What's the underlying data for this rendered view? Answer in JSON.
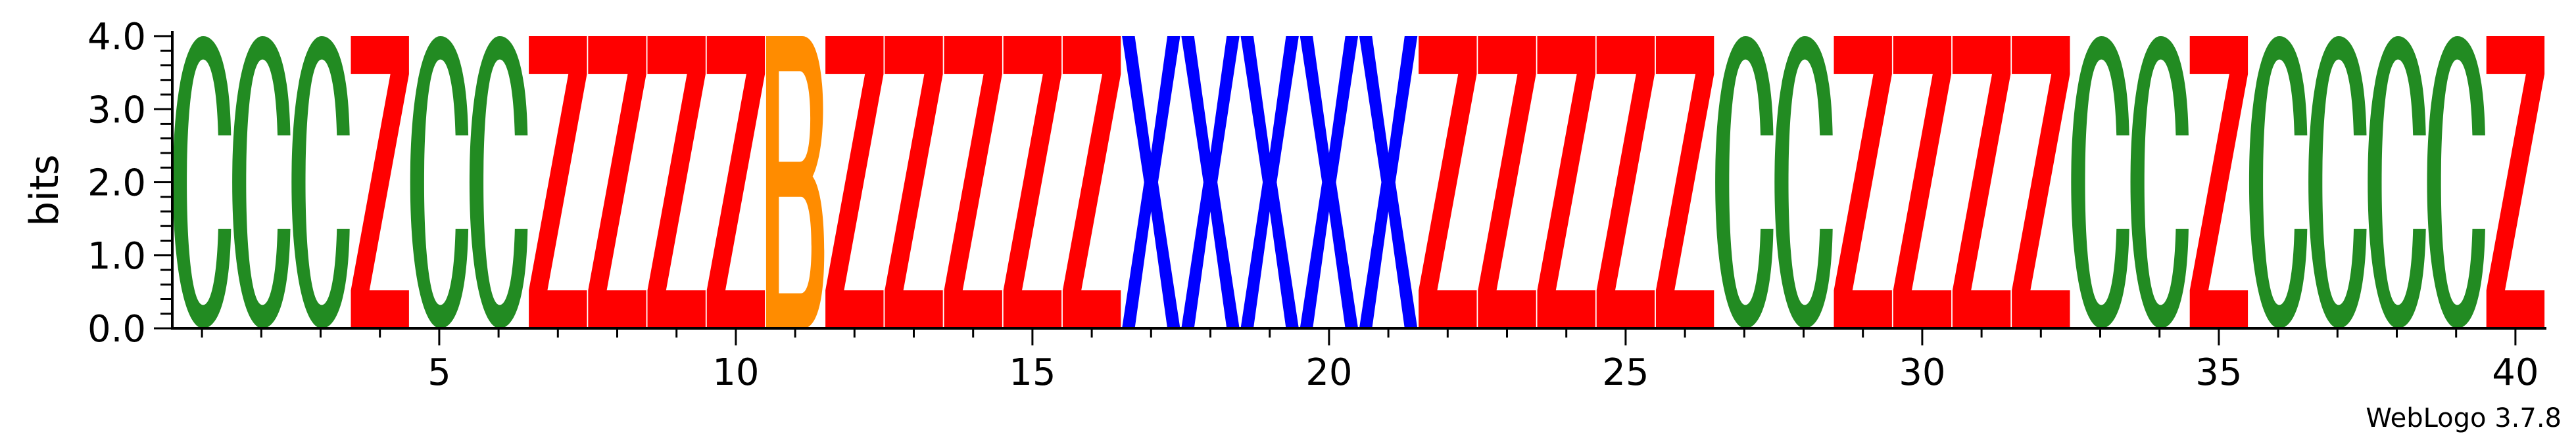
{
  "chart_data": {
    "type": "sequence-logo",
    "xlabel": "",
    "ylabel": "bits",
    "ylim": [
      0,
      4.0
    ],
    "yticks": [
      "0.0",
      "1.0",
      "2.0",
      "3.0",
      "4.0"
    ],
    "xlim": [
      1,
      40
    ],
    "xticks": [
      "5",
      "10",
      "15",
      "20",
      "25",
      "30",
      "35",
      "40"
    ],
    "grid": false,
    "footer": "WebLogo 3.7.8",
    "color_map": {
      "C": "#228B22",
      "Z": "#FF0000",
      "B": "#FF8C00",
      "X": "#0000FF"
    },
    "positions": [
      1,
      2,
      3,
      4,
      5,
      6,
      7,
      8,
      9,
      10,
      11,
      12,
      13,
      14,
      15,
      16,
      17,
      18,
      19,
      20,
      21,
      22,
      23,
      24,
      25,
      26,
      27,
      28,
      29,
      30,
      31,
      32,
      33,
      34,
      35,
      36,
      37,
      38,
      39,
      40
    ],
    "letters": [
      "C",
      "C",
      "C",
      "Z",
      "C",
      "C",
      "Z",
      "Z",
      "Z",
      "Z",
      "B",
      "Z",
      "Z",
      "Z",
      "Z",
      "Z",
      "X",
      "X",
      "X",
      "X",
      "X",
      "Z",
      "Z",
      "Z",
      "Z",
      "Z",
      "C",
      "C",
      "Z",
      "Z",
      "Z",
      "Z",
      "C",
      "C",
      "Z",
      "C",
      "C",
      "C",
      "C",
      "Z"
    ],
    "values": [
      4.0,
      4.0,
      4.0,
      4.0,
      4.0,
      4.0,
      4.0,
      4.0,
      4.0,
      4.0,
      4.0,
      4.0,
      4.0,
      4.0,
      4.0,
      4.0,
      4.0,
      4.0,
      4.0,
      4.0,
      4.0,
      4.0,
      4.0,
      4.0,
      4.0,
      4.0,
      4.0,
      4.0,
      4.0,
      4.0,
      4.0,
      4.0,
      4.0,
      4.0,
      4.0,
      4.0,
      4.0,
      4.0,
      4.0,
      4.0
    ]
  }
}
